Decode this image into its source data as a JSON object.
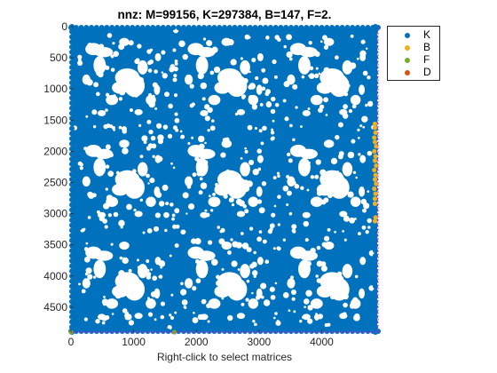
{
  "chart_data": {
    "type": "scatter",
    "title": "nnz: M=99156, K=297384, B=147, F=2.",
    "xlabel": "Right-click to select matrices",
    "ylabel": "",
    "xlim": [
      0,
      4900
    ],
    "ylim": [
      4900,
      0
    ],
    "y_reversed": true,
    "xticks": [
      "0",
      "1000",
      "2000",
      "3000",
      "4000"
    ],
    "yticks": [
      "0",
      "500",
      "1000",
      "1500",
      "2000",
      "2500",
      "3000",
      "3500",
      "4000",
      "4500"
    ],
    "grid": false,
    "legend_position": "outside-top-right",
    "series": [
      {
        "name": "K",
        "color": "#0072BD",
        "description": "dense block pattern, 3x3 repeated blocks of approx 1620x1620",
        "points": [
          [
            0,
            0
          ],
          [
            4850,
            4850
          ]
        ]
      },
      {
        "name": "B",
        "color": "#EDB120",
        "points": [
          [
            4850,
            1560
          ],
          [
            4850,
            1620
          ],
          [
            4860,
            1700
          ],
          [
            4840,
            1780
          ],
          [
            4850,
            1850
          ],
          [
            4870,
            1920
          ],
          [
            4840,
            2000
          ],
          [
            4860,
            2080
          ],
          [
            4850,
            2150
          ],
          [
            4870,
            2230
          ],
          [
            4840,
            2300
          ],
          [
            4860,
            2380
          ],
          [
            4850,
            2450
          ],
          [
            4870,
            2520
          ],
          [
            4840,
            2600
          ],
          [
            4860,
            2680
          ],
          [
            4850,
            2760
          ],
          [
            4850,
            2840
          ],
          [
            4860,
            3060
          ],
          [
            4850,
            3120
          ]
        ]
      },
      {
        "name": "F",
        "color": "#77AC30",
        "points": [
          [
            0,
            4900
          ],
          [
            1650,
            4900
          ]
        ]
      },
      {
        "name": "D",
        "color": "#D95319",
        "points": []
      }
    ],
    "boundary_lines": {
      "color": "#FF00FF",
      "x": 4900,
      "y": 4900
    }
  }
}
